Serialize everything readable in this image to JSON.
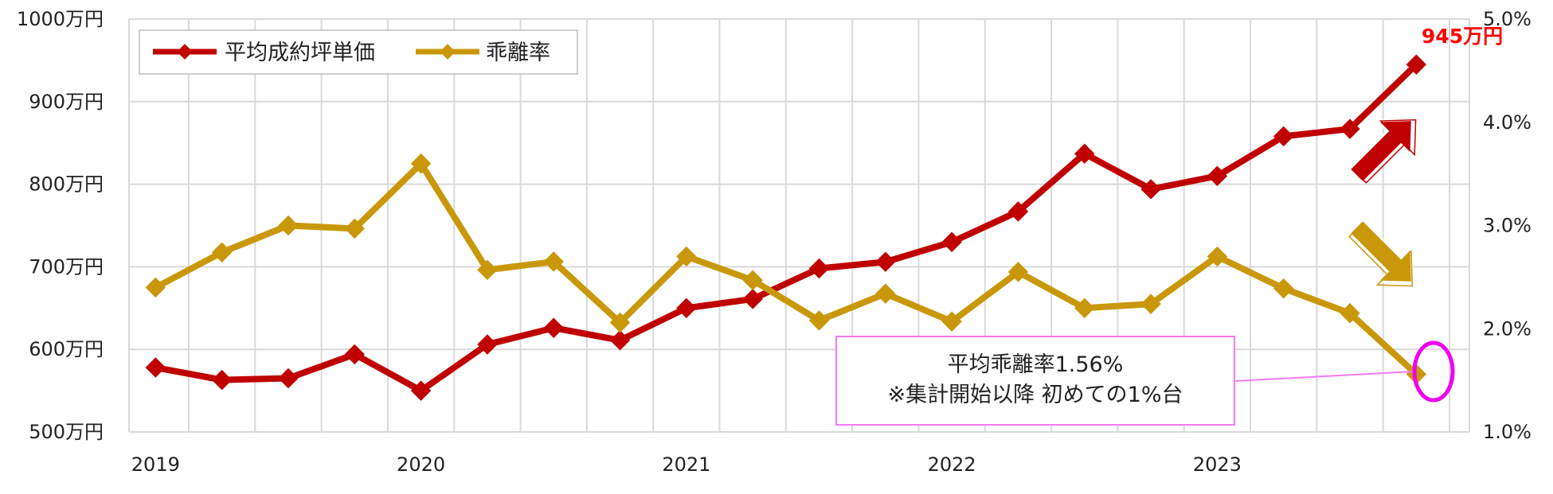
{
  "chart_data": {
    "type": "line",
    "x": [
      2019.0,
      2019.25,
      2019.5,
      2019.75,
      2020.0,
      2020.25,
      2020.5,
      2020.75,
      2021.0,
      2021.25,
      2021.5,
      2021.75,
      2022.0,
      2022.25,
      2022.5,
      2022.75,
      2023.0,
      2023.25,
      2023.5,
      2023.75
    ],
    "x_ticks": [
      "2019",
      "2020",
      "2021",
      "2022",
      "2023"
    ],
    "xlim": [
      2018.9,
      2023.95
    ],
    "y_left_ticks": [
      "500万円",
      "600万円",
      "700万円",
      "800万円",
      "900万円",
      "1000万円"
    ],
    "y_left_lim": [
      500,
      1000
    ],
    "y_right_ticks": [
      "1.0%",
      "2.0%",
      "3.0%",
      "4.0%",
      "5.0%"
    ],
    "y_right_lim": [
      1.0,
      5.0
    ],
    "grid": true,
    "legend_position": "top-left",
    "series": [
      {
        "name": "平均成約坪単価",
        "axis": "left",
        "color": "#C00000",
        "values": [
          578,
          563,
          565,
          594,
          550,
          606,
          626,
          611,
          650,
          661,
          698,
          706,
          730,
          767,
          837,
          794,
          810,
          858,
          867,
          945
        ]
      },
      {
        "name": "乖離率",
        "axis": "right",
        "color": "#C9980A",
        "values": [
          2.4,
          2.74,
          3.0,
          2.97,
          3.6,
          2.57,
          2.65,
          2.06,
          2.7,
          2.47,
          2.08,
          2.34,
          2.07,
          2.55,
          2.2,
          2.24,
          2.7,
          2.39,
          2.15,
          1.56
        ]
      }
    ],
    "last_value_label": "945万円",
    "annotation": {
      "line1": "平均乖離率1.56%",
      "line2": "※集計開始以降 初めての1%台"
    },
    "trend_arrows": [
      {
        "series": "平均成約坪単価",
        "direction": "up"
      },
      {
        "series": "乖離率",
        "direction": "down"
      }
    ],
    "colors": {
      "price": "#C00000",
      "rate": "#C9980A",
      "annotation_border": "#F27BF2",
      "highlight": "#F000F0",
      "label_red": "#FF0000"
    }
  }
}
